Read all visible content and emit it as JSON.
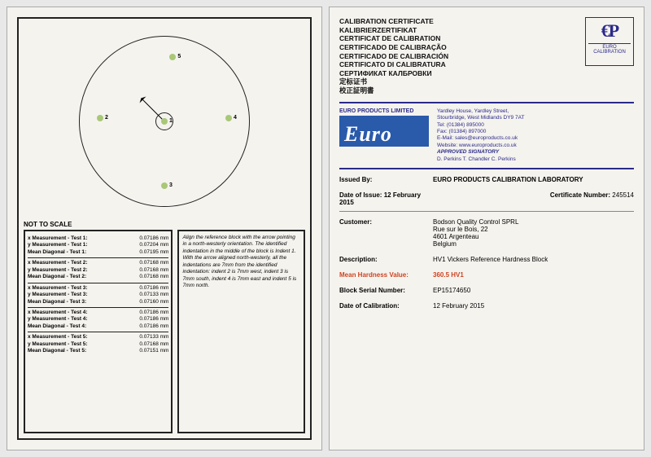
{
  "left": {
    "notScale": "NOT TO SCALE",
    "points": [
      {
        "n": "1",
        "x": 50,
        "y": 50
      },
      {
        "n": "2",
        "x": 12,
        "y": 48
      },
      {
        "n": "3",
        "x": 50,
        "y": 88
      },
      {
        "n": "4",
        "x": 88,
        "y": 48
      },
      {
        "n": "5",
        "x": 55,
        "y": 12
      }
    ],
    "tests": [
      {
        "t": "1",
        "x": "0.07186 mm",
        "y": "0.07204 mm",
        "m": "0.07195 mm"
      },
      {
        "t": "2",
        "x": "0.07168 mm",
        "y": "0.07168 mm",
        "m": "0.07168 mm"
      },
      {
        "t": "3",
        "x": "0.07186 mm",
        "y": "0.07133 mm",
        "m": "0.07160 mm"
      },
      {
        "t": "4",
        "x": "0.07186 mm",
        "y": "0.07186 mm",
        "m": "0.07186 mm"
      },
      {
        "t": "5",
        "x": "0.07133 mm",
        "y": "0.07168 mm",
        "m": "0.07151 mm"
      }
    ],
    "instructions": "Align the reference block with the arrow pointing in a north-westerly orientation. The identified indentation in the middle of the block is Indent 1. With the arrow aligned north-westerly, all the indentations are 7mm from the identified indentation: indent 2 is 7mm west, indent 3 is 7mm south, indent 4 is 7mm east and indent 5 is 7mm north."
  },
  "right": {
    "titles": [
      "CALIBRATION CERTIFICATE",
      "KALIBRIERZERTIFIKAT",
      "CERTIFICAT DE CALIBRATION",
      "CERTIFICADO DE CALIBRAÇÃO",
      "CERTIFICADO DE CALIBRACIÓN",
      "CERTIFICATO DI CALIBRATURA",
      "СЕРТИФИКАТ КАЛБРОВКИ",
      "定标证书",
      "校正証明書"
    ],
    "euroCal": "EURO CALIBRATION",
    "companyName": "EURO PRODUCTS LIMITED",
    "addr1": "Yardley House, Yardley Street,",
    "addr2": "Stourbridge, West Midlands DY9 7AT",
    "tel": "Tel:   (01384) 895000",
    "fax": "Fax:  (01384) 897000",
    "email": "E-Mail: sales@europroducts.co.uk",
    "web": "Website: www.europroducts.co.uk",
    "sig": "APPROVED SIGNATORY",
    "sigNames": "D. Perkins      T. Chandler      C. Perkins",
    "issuedByLabel": "Issued By:",
    "issuedBy": "EURO PRODUCTS CALIBRATION LABORATORY",
    "dateIssueLabel": "Date of Issue:",
    "dateIssue": "12 February 2015",
    "certNoLabel": "Certificate Number:",
    "certNo": "245514",
    "custLabel": "Customer:",
    "cust1": "Bodson Quality Control SPRL",
    "cust2": "Rue sur le Bois, 22",
    "cust3": "4601 Argenteau",
    "cust4": "Belgium",
    "descLabel": "Description:",
    "desc": "HV1  Vickers Reference Hardness Block",
    "hardLabel": "Mean Hardness Value:",
    "hard": "360.5 HV1",
    "serialLabel": "Block Serial Number:",
    "serial": "EP15174650",
    "calDateLabel": "Date of Calibration:",
    "calDate": "12 February 2015"
  }
}
